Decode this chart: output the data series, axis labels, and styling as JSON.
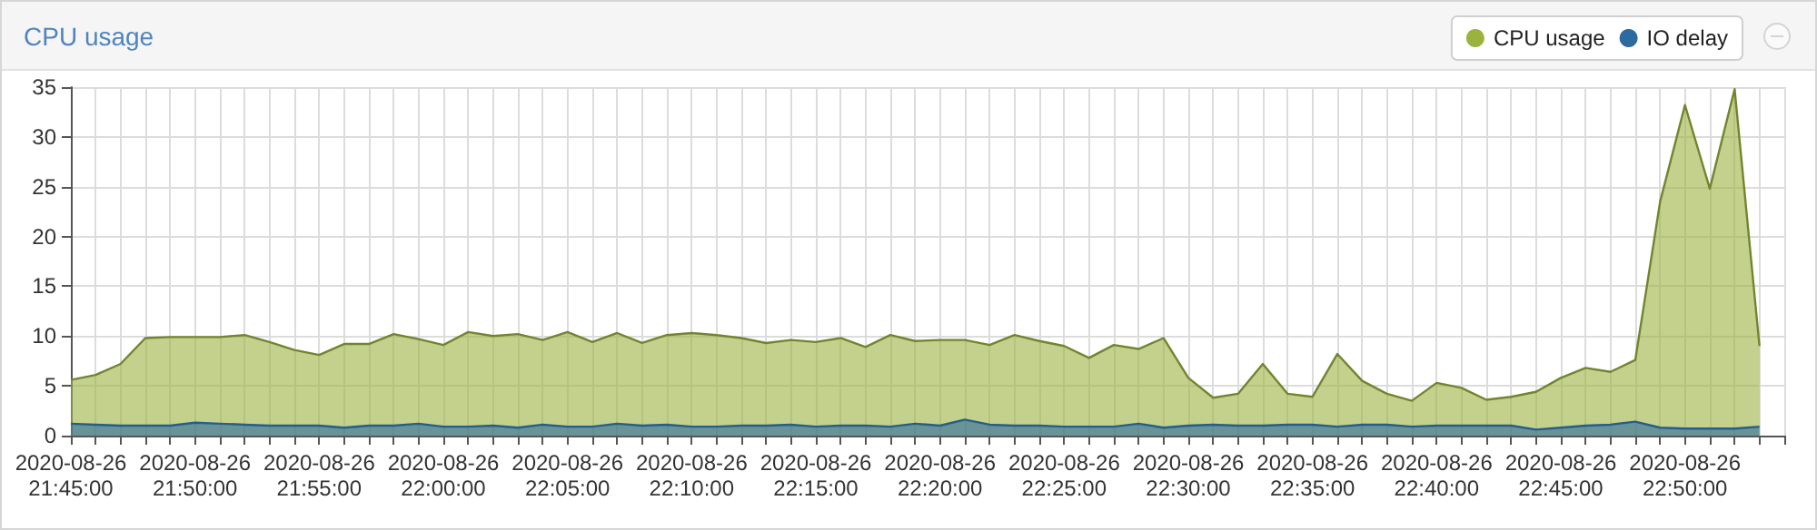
{
  "chart_data": {
    "type": "area",
    "title": "CPU usage",
    "x": [
      "2020-08-26T21:45",
      "2020-08-26T21:46",
      "2020-08-26T21:47",
      "2020-08-26T21:48",
      "2020-08-26T21:49",
      "2020-08-26T21:50",
      "2020-08-26T21:51",
      "2020-08-26T21:52",
      "2020-08-26T21:53",
      "2020-08-26T21:54",
      "2020-08-26T21:55",
      "2020-08-26T21:56",
      "2020-08-26T21:57",
      "2020-08-26T21:58",
      "2020-08-26T21:59",
      "2020-08-26T22:00",
      "2020-08-26T22:01",
      "2020-08-26T22:02",
      "2020-08-26T22:03",
      "2020-08-26T22:04",
      "2020-08-26T22:05",
      "2020-08-26T22:06",
      "2020-08-26T22:07",
      "2020-08-26T22:08",
      "2020-08-26T22:09",
      "2020-08-26T22:10",
      "2020-08-26T22:11",
      "2020-08-26T22:12",
      "2020-08-26T22:13",
      "2020-08-26T22:14",
      "2020-08-26T22:15",
      "2020-08-26T22:16",
      "2020-08-26T22:17",
      "2020-08-26T22:18",
      "2020-08-26T22:19",
      "2020-08-26T22:20",
      "2020-08-26T22:21",
      "2020-08-26T22:22",
      "2020-08-26T22:23",
      "2020-08-26T22:24",
      "2020-08-26T22:25",
      "2020-08-26T22:26",
      "2020-08-26T22:27",
      "2020-08-26T22:28",
      "2020-08-26T22:29",
      "2020-08-26T22:30",
      "2020-08-26T22:31",
      "2020-08-26T22:32",
      "2020-08-26T22:33",
      "2020-08-26T22:34",
      "2020-08-26T22:35",
      "2020-08-26T22:36",
      "2020-08-26T22:37",
      "2020-08-26T22:38",
      "2020-08-26T22:39",
      "2020-08-26T22:40",
      "2020-08-26T22:41",
      "2020-08-26T22:42",
      "2020-08-26T22:43",
      "2020-08-26T22:44",
      "2020-08-26T22:45",
      "2020-08-26T22:46",
      "2020-08-26T22:47",
      "2020-08-26T22:48",
      "2020-08-26T22:49",
      "2020-08-26T22:50",
      "2020-08-26T22:51",
      "2020-08-26T22:52",
      "2020-08-26T22:53"
    ],
    "series": [
      {
        "name": "CPU usage",
        "color": "#9bb23f",
        "values": [
          5.6,
          6.1,
          7.2,
          9.8,
          9.9,
          9.9,
          9.9,
          10.1,
          9.4,
          8.6,
          8.1,
          9.2,
          9.2,
          10.2,
          9.7,
          9.1,
          10.4,
          10.0,
          10.2,
          9.6,
          10.4,
          9.4,
          10.3,
          9.3,
          10.1,
          10.3,
          10.1,
          9.8,
          9.3,
          9.6,
          9.4,
          9.8,
          8.9,
          10.1,
          9.5,
          9.6,
          9.6,
          9.1,
          10.1,
          9.5,
          9.0,
          7.8,
          9.1,
          8.7,
          9.8,
          5.8,
          3.8,
          4.2,
          7.2,
          4.2,
          3.9,
          8.2,
          5.5,
          4.2,
          3.5,
          5.3,
          4.8,
          3.6,
          3.9,
          4.4,
          5.8,
          6.8,
          6.4,
          7.6,
          23.5,
          33.2,
          24.8,
          34.8,
          9.0
        ]
      },
      {
        "name": "IO delay",
        "color": "#2c6aa0",
        "values": [
          1.2,
          1.1,
          1.0,
          1.0,
          1.0,
          1.3,
          1.2,
          1.1,
          1.0,
          1.0,
          1.0,
          0.8,
          1.0,
          1.0,
          1.2,
          0.9,
          0.9,
          1.0,
          0.8,
          1.1,
          0.9,
          0.9,
          1.2,
          1.0,
          1.1,
          0.9,
          0.9,
          1.0,
          1.0,
          1.1,
          0.9,
          1.0,
          1.0,
          0.9,
          1.2,
          1.0,
          1.6,
          1.1,
          1.0,
          1.0,
          0.9,
          0.9,
          0.9,
          1.2,
          0.8,
          1.0,
          1.1,
          1.0,
          1.0,
          1.1,
          1.1,
          0.9,
          1.1,
          1.1,
          0.9,
          1.0,
          1.0,
          1.0,
          1.0,
          0.6,
          0.8,
          1.0,
          1.1,
          1.4,
          0.8,
          0.7,
          0.7,
          0.7,
          0.9
        ]
      }
    ],
    "xlim": [
      "2020-08-26T21:45",
      "2020-08-26T22:54"
    ],
    "xticks": [
      {
        "value": "2020-08-26T21:45",
        "label": "2020-08-26\n21:45:00"
      },
      {
        "value": "2020-08-26T21:46",
        "label": null
      },
      {
        "value": "2020-08-26T21:47",
        "label": null
      },
      {
        "value": "2020-08-26T21:48",
        "label": null
      },
      {
        "value": "2020-08-26T21:49",
        "label": null
      },
      {
        "value": "2020-08-26T21:50",
        "label": "2020-08-26\n21:50:00"
      },
      {
        "value": "2020-08-26T21:51",
        "label": null
      },
      {
        "value": "2020-08-26T21:52",
        "label": null
      },
      {
        "value": "2020-08-26T21:53",
        "label": null
      },
      {
        "value": "2020-08-26T21:54",
        "label": null
      },
      {
        "value": "2020-08-26T21:55",
        "label": "2020-08-26\n21:55:00"
      },
      {
        "value": "2020-08-26T21:56",
        "label": null
      },
      {
        "value": "2020-08-26T21:57",
        "label": null
      },
      {
        "value": "2020-08-26T21:58",
        "label": null
      },
      {
        "value": "2020-08-26T21:59",
        "label": null
      },
      {
        "value": "2020-08-26T22:00",
        "label": "2020-08-26\n22:00:00"
      },
      {
        "value": "2020-08-26T22:01",
        "label": null
      },
      {
        "value": "2020-08-26T22:02",
        "label": null
      },
      {
        "value": "2020-08-26T22:03",
        "label": null
      },
      {
        "value": "2020-08-26T22:04",
        "label": null
      },
      {
        "value": "2020-08-26T22:05",
        "label": "2020-08-26\n22:05:00"
      },
      {
        "value": "2020-08-26T22:06",
        "label": null
      },
      {
        "value": "2020-08-26T22:07",
        "label": null
      },
      {
        "value": "2020-08-26T22:08",
        "label": null
      },
      {
        "value": "2020-08-26T22:09",
        "label": null
      },
      {
        "value": "2020-08-26T22:10",
        "label": "2020-08-26\n22:10:00"
      },
      {
        "value": "2020-08-26T22:11",
        "label": null
      },
      {
        "value": "2020-08-26T22:12",
        "label": null
      },
      {
        "value": "2020-08-26T22:13",
        "label": null
      },
      {
        "value": "2020-08-26T22:14",
        "label": null
      },
      {
        "value": "2020-08-26T22:15",
        "label": "2020-08-26\n22:15:00"
      },
      {
        "value": "2020-08-26T22:16",
        "label": null
      },
      {
        "value": "2020-08-26T22:17",
        "label": null
      },
      {
        "value": "2020-08-26T22:18",
        "label": null
      },
      {
        "value": "2020-08-26T22:19",
        "label": null
      },
      {
        "value": "2020-08-26T22:20",
        "label": "2020-08-26\n22:20:00"
      },
      {
        "value": "2020-08-26T22:21",
        "label": null
      },
      {
        "value": "2020-08-26T22:22",
        "label": null
      },
      {
        "value": "2020-08-26T22:23",
        "label": null
      },
      {
        "value": "2020-08-26T22:24",
        "label": null
      },
      {
        "value": "2020-08-26T22:25",
        "label": "2020-08-26\n22:25:00"
      },
      {
        "value": "2020-08-26T22:26",
        "label": null
      },
      {
        "value": "2020-08-26T22:27",
        "label": null
      },
      {
        "value": "2020-08-26T22:28",
        "label": null
      },
      {
        "value": "2020-08-26T22:29",
        "label": null
      },
      {
        "value": "2020-08-26T22:30",
        "label": "2020-08-26\n22:30:00"
      },
      {
        "value": "2020-08-26T22:31",
        "label": null
      },
      {
        "value": "2020-08-26T22:32",
        "label": null
      },
      {
        "value": "2020-08-26T22:33",
        "label": null
      },
      {
        "value": "2020-08-26T22:34",
        "label": null
      },
      {
        "value": "2020-08-26T22:35",
        "label": "2020-08-26\n22:35:00"
      },
      {
        "value": "2020-08-26T22:36",
        "label": null
      },
      {
        "value": "2020-08-26T22:37",
        "label": null
      },
      {
        "value": "2020-08-26T22:38",
        "label": null
      },
      {
        "value": "2020-08-26T22:39",
        "label": null
      },
      {
        "value": "2020-08-26T22:40",
        "label": "2020-08-26\n22:40:00"
      },
      {
        "value": "2020-08-26T22:41",
        "label": null
      },
      {
        "value": "2020-08-26T22:42",
        "label": null
      },
      {
        "value": "2020-08-26T22:43",
        "label": null
      },
      {
        "value": "2020-08-26T22:44",
        "label": null
      },
      {
        "value": "2020-08-26T22:45",
        "label": "2020-08-26\n22:45:00"
      },
      {
        "value": "2020-08-26T22:46",
        "label": null
      },
      {
        "value": "2020-08-26T22:47",
        "label": null
      },
      {
        "value": "2020-08-26T22:48",
        "label": null
      },
      {
        "value": "2020-08-26T22:49",
        "label": null
      },
      {
        "value": "2020-08-26T22:50",
        "label": "2020-08-26\n22:50:00"
      },
      {
        "value": "2020-08-26T22:51",
        "label": null
      },
      {
        "value": "2020-08-26T22:52",
        "label": null
      },
      {
        "value": "2020-08-26T22:53",
        "label": null
      },
      {
        "value": "2020-08-26T22:54",
        "label": null
      }
    ],
    "ylim": [
      0,
      35
    ],
    "yticks": [
      0,
      5,
      10,
      15,
      20,
      25,
      30,
      35
    ],
    "grid": true,
    "legend": "top right"
  }
}
